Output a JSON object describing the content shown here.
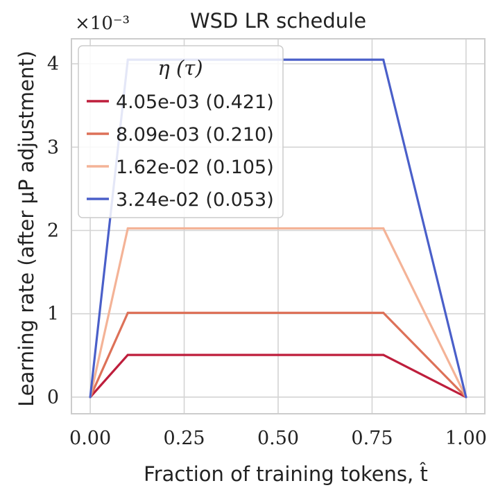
{
  "chart_data": {
    "type": "line",
    "title": "WSD LR schedule",
    "xlabel": "Fraction of training tokens, t̂",
    "ylabel": "Learning rate (after μP adjustment)",
    "y_multiplier": "×10⁻³",
    "xlim": [
      -0.05,
      1.05
    ],
    "ylim": [
      -0.2,
      4.3
    ],
    "xticks": [
      0.0,
      0.25,
      0.5,
      0.75,
      1.0
    ],
    "xtick_labels": [
      "0.00",
      "0.25",
      "0.50",
      "0.75",
      "1.00"
    ],
    "yticks": [
      0,
      1,
      2,
      3,
      4
    ],
    "ytick_labels": [
      "0",
      "1",
      "2",
      "3",
      "4"
    ],
    "grid": true,
    "legend": {
      "title": "η (τ)",
      "location": "upper-left"
    },
    "series": [
      {
        "name": "4.05e-03 (0.421)",
        "color": "#be1e3c",
        "x": [
          0.0,
          0.1,
          0.78,
          1.0
        ],
        "y": [
          0.0,
          0.506,
          0.506,
          0.0
        ]
      },
      {
        "name": "8.09e-03 (0.210)",
        "color": "#dd7158",
        "x": [
          0.0,
          0.1,
          0.78,
          1.0
        ],
        "y": [
          0.0,
          1.011,
          1.011,
          0.0
        ]
      },
      {
        "name": "1.62e-02 (0.105)",
        "color": "#f4b397",
        "x": [
          0.0,
          0.1,
          0.78,
          1.0
        ],
        "y": [
          0.0,
          2.025,
          2.025,
          0.0
        ]
      },
      {
        "name": "3.24e-02 (0.053)",
        "color": "#4a5fc9",
        "x": [
          0.0,
          0.1,
          0.78,
          1.0
        ],
        "y": [
          0.0,
          4.05,
          4.05,
          0.0
        ]
      }
    ]
  }
}
